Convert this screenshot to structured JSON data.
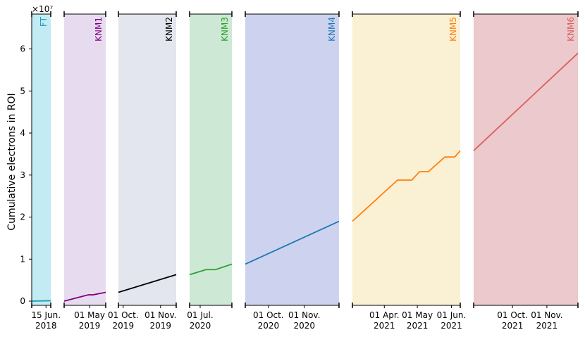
{
  "chart_data": {
    "type": "line",
    "ylabel": "Cumulative electrons in ROI",
    "y_offset_label": "×10⁷",
    "ylim": [
      -0.1,
      6.83
    ],
    "yticks": [
      0,
      1,
      2,
      3,
      4,
      5,
      6
    ],
    "panels": [
      {
        "name": "FT",
        "color": "#1a9bb5",
        "background": "#c3ebf4",
        "xlim": [
          "2018-06-03",
          "2018-06-19"
        ],
        "xticks": [
          {
            "value": "2018-06-15",
            "label": "15 Jun.\n2018"
          }
        ],
        "x": [
          "2018-06-03",
          "2018-06-19"
        ],
        "values": [
          0.0,
          0.01
        ]
      },
      {
        "name": "KNM1",
        "color": "#800080",
        "background": "#e7dcef",
        "xlim": [
          "2019-04-09",
          "2019-05-15"
        ],
        "xticks": [
          {
            "value": "2019-05-01",
            "label": "01 May\n2019"
          }
        ],
        "x": [
          "2019-04-09",
          "2019-04-30",
          "2019-05-04",
          "2019-05-15"
        ],
        "values": [
          0.0,
          0.15,
          0.15,
          0.21
        ]
      },
      {
        "name": "KNM2",
        "color": "#000000",
        "background": "#e3e6ee",
        "xlim": [
          "2019-09-27",
          "2019-11-14"
        ],
        "xticks": [
          {
            "value": "2019-10-01",
            "label": "01 Oct.\n2019"
          },
          {
            "value": "2019-11-01",
            "label": "01 Nov.\n2019"
          }
        ],
        "x": [
          "2019-09-27",
          "2019-11-14"
        ],
        "values": [
          0.21,
          0.63
        ]
      },
      {
        "name": "KNM3",
        "color": "#2ca02c",
        "background": "#cde9d6",
        "xlim": [
          "2020-06-22",
          "2020-07-28"
        ],
        "xticks": [
          {
            "value": "2020-07-01",
            "label": "01 Jul.\n2020"
          }
        ],
        "x": [
          "2020-06-22",
          "2020-07-06",
          "2020-07-14",
          "2020-07-28"
        ],
        "values": [
          0.63,
          0.75,
          0.75,
          0.88
        ]
      },
      {
        "name": "KNM4",
        "color": "#1f77b4",
        "background": "#cdd3ee",
        "xlim": [
          "2020-09-11",
          "2020-12-01"
        ],
        "xticks": [
          {
            "value": "2020-10-01",
            "label": "01 Oct.\n2020"
          },
          {
            "value": "2020-11-01",
            "label": "01 Nov.\n2020"
          }
        ],
        "x": [
          "2020-09-11",
          "2020-12-01"
        ],
        "values": [
          0.88,
          1.9
        ]
      },
      {
        "name": "KNM5",
        "color": "#ff7f0e",
        "background": "#faf0d3",
        "xlim": [
          "2021-03-03",
          "2021-06-09"
        ],
        "xticks": [
          {
            "value": "2021-04-01",
            "label": "01 Apr.\n2021"
          },
          {
            "value": "2021-05-01",
            "label": "01 May\n2021"
          },
          {
            "value": "2021-06-01",
            "label": "01 Jun.\n2021"
          }
        ],
        "x": [
          "2021-03-03",
          "2021-04-13",
          "2021-04-26",
          "2021-05-03",
          "2021-05-11",
          "2021-05-26",
          "2021-06-04",
          "2021-06-09"
        ],
        "values": [
          1.9,
          2.88,
          2.88,
          3.08,
          3.08,
          3.43,
          3.43,
          3.58
        ]
      },
      {
        "name": "KNM6",
        "color": "#d9605e",
        "background": "#ecc9cc",
        "xlim": [
          "2021-08-27",
          "2021-11-29"
        ],
        "xticks": [
          {
            "value": "2021-10-01",
            "label": "01 Oct.\n2021"
          },
          {
            "value": "2021-11-01",
            "label": "01 Nov.\n2021"
          }
        ],
        "x": [
          "2021-08-27",
          "2021-11-29"
        ],
        "values": [
          3.58,
          5.9
        ]
      }
    ]
  }
}
